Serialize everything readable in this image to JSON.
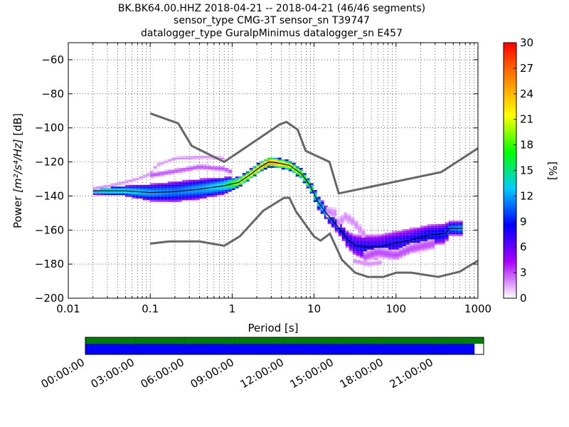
{
  "title_lines": [
    "BK.BK64.00.HHZ   2018-04-21 -- 2018-04-21  (46/46 segments)",
    "sensor_type CMG-3T sensor_sn T39747",
    "datalogger_type GuralpMinimus datalogger_sn E457"
  ],
  "chart_data": {
    "type": "heatmap",
    "xlabel": "Period [s]",
    "ylabel": "Power [m²/s⁴/Hz] [dB]",
    "ylabel_prefix": "Power ",
    "ylabel_math": "[m²/s⁴/Hz]",
    "ylabel_suffix": " [dB]",
    "xscale": "log",
    "xlim": [
      0.01,
      1000
    ],
    "ylim": [
      -200,
      -50
    ],
    "xticks": [
      0.01,
      0.1,
      1,
      10,
      100,
      1000
    ],
    "xtick_labels": [
      "0.01",
      "0.1",
      "1",
      "10",
      "100",
      "1000"
    ],
    "yticks": [
      -200,
      -180,
      -160,
      -140,
      -120,
      -100,
      -80,
      -60
    ],
    "ytick_labels": [
      "−200",
      "−180",
      "−160",
      "−140",
      "−120",
      "−100",
      "−80",
      "−60"
    ],
    "grid": "dotted",
    "colorbar": {
      "label": "[%]",
      "range": [
        0,
        30
      ],
      "ticks": [
        0,
        3,
        6,
        9,
        12,
        15,
        18,
        21,
        24,
        27,
        30
      ],
      "tick_labels": [
        "0",
        "3",
        "6",
        "9",
        "12",
        "15",
        "18",
        "21",
        "24",
        "27",
        "30"
      ],
      "colormap": [
        "#ffffff",
        "#aa00ff",
        "#0000ff",
        "#00ccff",
        "#00ff00",
        "#ffff00",
        "#ff8800",
        "#ff0000"
      ]
    },
    "noise_models": [
      {
        "name": "NHNM",
        "color": "#666666",
        "points": [
          [
            0.1,
            -91.5
          ],
          [
            0.22,
            -97.4
          ],
          [
            0.32,
            -110.5
          ],
          [
            0.8,
            -120
          ],
          [
            3.8,
            -98
          ],
          [
            4.6,
            -96.5
          ],
          [
            6.3,
            -101
          ],
          [
            7.9,
            -113.5
          ],
          [
            15.4,
            -120
          ],
          [
            20,
            -138.5
          ],
          [
            354.8,
            -126
          ],
          [
            1000,
            -112
          ]
        ]
      },
      {
        "name": "NLNM",
        "color": "#666666",
        "points": [
          [
            0.1,
            -168
          ],
          [
            0.17,
            -166.7
          ],
          [
            0.4,
            -166.7
          ],
          [
            0.8,
            -169.2
          ],
          [
            1.24,
            -163.7
          ],
          [
            2.4,
            -148.6
          ],
          [
            4.3,
            -141.1
          ],
          [
            5,
            -141.1
          ],
          [
            6,
            -149
          ],
          [
            10,
            -163.8
          ],
          [
            12,
            -166.2
          ],
          [
            15.6,
            -162.1
          ],
          [
            21.9,
            -177.5
          ],
          [
            31.6,
            -185
          ],
          [
            45,
            -187.5
          ],
          [
            70,
            -187.5
          ],
          [
            101,
            -185
          ],
          [
            154,
            -185
          ],
          [
            328,
            -187.5
          ],
          [
            600,
            -184.4
          ],
          [
            1000,
            -178
          ]
        ]
      }
    ],
    "mode_curve": {
      "name": "mode",
      "color": "#000000",
      "points": [
        [
          0.02,
          -137
        ],
        [
          0.05,
          -137
        ],
        [
          0.1,
          -138
        ],
        [
          0.2,
          -137.5
        ],
        [
          0.4,
          -136
        ],
        [
          0.8,
          -134
        ],
        [
          1.2,
          -132
        ],
        [
          1.6,
          -128
        ],
        [
          2.2,
          -123
        ],
        [
          2.8,
          -120
        ],
        [
          3.5,
          -120.5
        ],
        [
          5,
          -122
        ],
        [
          7,
          -127
        ],
        [
          9,
          -134
        ],
        [
          11,
          -143
        ],
        [
          14,
          -150
        ],
        [
          18,
          -156
        ],
        [
          22,
          -161
        ],
        [
          26,
          -166
        ],
        [
          32,
          -169
        ],
        [
          40,
          -170
        ],
        [
          60,
          -170
        ],
        [
          90,
          -168
        ],
        [
          150,
          -166
        ],
        [
          250,
          -163
        ],
        [
          400,
          -162
        ],
        [
          450,
          -159
        ],
        [
          650,
          -159
        ]
      ]
    },
    "density_bands": [
      {
        "name": "main",
        "points": [
          [
            0.02,
            -137
          ],
          [
            0.05,
            -137
          ],
          [
            0.1,
            -138
          ],
          [
            0.2,
            -137.5
          ],
          [
            0.4,
            -136
          ],
          [
            0.8,
            -134
          ],
          [
            1.2,
            -132
          ],
          [
            1.6,
            -128
          ],
          [
            2.2,
            -123
          ],
          [
            2.8,
            -120
          ],
          [
            3.5,
            -120.5
          ],
          [
            5,
            -122
          ],
          [
            7,
            -127
          ],
          [
            9,
            -134
          ],
          [
            11,
            -143
          ],
          [
            14,
            -150
          ],
          [
            18,
            -156
          ],
          [
            22,
            -161
          ],
          [
            26,
            -166
          ],
          [
            32,
            -169
          ],
          [
            40,
            -170
          ],
          [
            60,
            -170
          ],
          [
            90,
            -168
          ],
          [
            150,
            -166
          ],
          [
            250,
            -163
          ],
          [
            400,
            -162
          ],
          [
            450,
            -159
          ],
          [
            650,
            -159
          ]
        ],
        "width_db": [
          2,
          3,
          5,
          6,
          6,
          5,
          3,
          3,
          3,
          3,
          3,
          3,
          3,
          3,
          4,
          4,
          4,
          4,
          5,
          6,
          7,
          7,
          7,
          7,
          6,
          6,
          4,
          4
        ],
        "peak_pct": [
          15,
          14,
          12,
          11,
          12,
          14,
          21,
          22,
          24,
          26,
          25,
          22,
          20,
          17,
          14,
          12,
          10,
          9,
          8,
          8,
          8,
          8,
          8,
          8,
          9,
          9,
          11,
          12
        ]
      },
      {
        "name": "upper-branch",
        "points": [
          [
            0.1,
            -128
          ],
          [
            0.2,
            -125.5
          ],
          [
            0.4,
            -123
          ],
          [
            0.8,
            -124
          ],
          [
            1.0,
            -126
          ]
        ],
        "width_db": [
          1.5,
          1.5,
          1.5,
          1.5,
          1.5
        ],
        "peak_pct": [
          3,
          3,
          3,
          3,
          3
        ]
      },
      {
        "name": "far-upper-branch",
        "points": [
          [
            0.02,
            -136
          ],
          [
            0.04,
            -133
          ],
          [
            0.07,
            -130
          ],
          [
            0.1,
            -127
          ],
          [
            0.12,
            -122
          ],
          [
            0.2,
            -118
          ],
          [
            0.5,
            -117
          ],
          [
            0.8,
            -118
          ]
        ],
        "width_db": [
          1,
          1,
          1,
          1,
          1,
          1,
          1,
          1
        ],
        "peak_pct": [
          2,
          2,
          2,
          2,
          2,
          2,
          2,
          2
        ]
      },
      {
        "name": "lower-tail",
        "points": [
          [
            40,
            -176
          ],
          [
            60,
            -173
          ],
          [
            100,
            -175
          ],
          [
            150,
            -171
          ],
          [
            300,
            -168
          ]
        ],
        "width_db": [
          3,
          3,
          3,
          3,
          3
        ],
        "peak_pct": [
          3,
          3,
          3,
          3,
          3
        ]
      },
      {
        "name": "lowest-tail",
        "points": [
          [
            30,
            -178
          ],
          [
            45,
            -180
          ],
          [
            70,
            -179
          ]
        ],
        "width_db": [
          1.5,
          1.5,
          1.5
        ],
        "peak_pct": [
          2,
          2,
          2
        ]
      },
      {
        "name": "scatter-microseism",
        "points": [
          [
            14,
            -149
          ],
          [
            18,
            -150
          ],
          [
            20,
            -156
          ],
          [
            24,
            -152
          ],
          [
            30,
            -155
          ],
          [
            40,
            -162
          ]
        ],
        "width_db": [
          3,
          3,
          3,
          3,
          3,
          3
        ],
        "peak_pct": [
          2,
          2,
          2,
          2,
          2,
          2
        ]
      }
    ]
  },
  "timeline": {
    "data_color": "#008000",
    "availability_color": "#0000ff",
    "start_hour": 0,
    "end_hour": 24,
    "coverage_end_hour": 23.45,
    "tick_hours": [
      0,
      3,
      6,
      9,
      12,
      15,
      18,
      21
    ],
    "tick_labels": [
      "00:00:00",
      "03:00:00",
      "06:00:00",
      "09:00:00",
      "12:00:00",
      "15:00:00",
      "18:00:00",
      "21:00:00"
    ]
  }
}
